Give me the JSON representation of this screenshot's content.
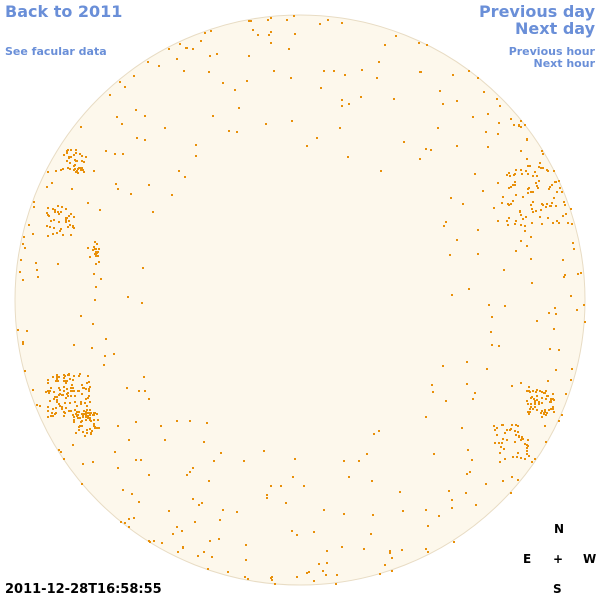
{
  "nav": {
    "back": "Back to 2011",
    "facular": "See facular data",
    "previous_day": "Previous day",
    "next_day": "Next day",
    "previous_hour": "Previous hour",
    "next_hour": "Next hour"
  },
  "compass": {
    "north": "N",
    "east": "E",
    "center": "+",
    "west": "W",
    "south": "S"
  },
  "timestamp": "2011-12-28T16:58:55"
}
